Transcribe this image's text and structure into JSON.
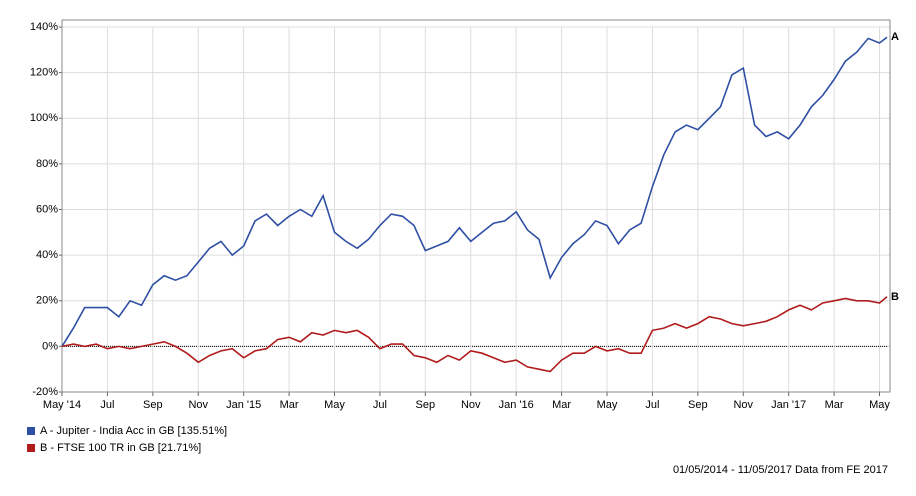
{
  "chart_data": {
    "type": "line",
    "x": [
      0,
      0.5,
      1,
      1.5,
      2,
      2.5,
      3,
      3.5,
      4,
      4.5,
      5,
      5.5,
      6,
      6.5,
      7,
      7.5,
      8,
      8.5,
      9,
      9.5,
      10,
      10.5,
      11,
      11.5,
      12,
      12.5,
      13,
      13.5,
      14,
      14.5,
      15,
      15.5,
      16,
      16.5,
      17,
      17.5,
      18,
      18.5,
      19,
      19.5,
      20,
      20.5,
      21,
      21.5,
      22,
      22.5,
      23,
      23.5,
      24,
      24.5,
      25,
      25.5,
      26,
      26.5,
      27,
      27.5,
      28,
      28.5,
      29,
      29.5,
      30,
      30.5,
      31,
      31.5,
      32,
      32.5,
      33,
      33.5,
      34,
      34.5,
      35,
      35.5,
      36,
      36.33
    ],
    "series": [
      {
        "name": "A - Jupiter - India Acc in GB [135.51%]",
        "label": "A",
        "color": "#2e4fa3",
        "values": [
          0,
          8,
          17,
          17,
          17,
          13,
          20,
          18,
          27,
          31,
          29,
          31,
          37,
          43,
          46,
          40,
          44,
          55,
          58,
          53,
          57,
          60,
          57,
          66,
          50,
          46,
          43,
          47,
          53,
          58,
          57,
          53,
          42,
          44,
          46,
          52,
          46,
          50,
          54,
          55,
          59,
          51,
          47,
          30,
          39,
          45,
          49,
          55,
          53,
          45,
          51,
          54,
          70,
          84,
          94,
          97,
          95,
          100,
          105,
          119,
          122,
          97,
          92,
          94,
          91,
          97,
          105,
          110,
          117,
          125,
          129,
          135,
          133,
          135.51
        ]
      },
      {
        "name": "B - FTSE 100 TR in GB [21.71%]",
        "label": "B",
        "color": "#b01c1c",
        "values": [
          0,
          1,
          0,
          1,
          -1,
          0,
          -1,
          0,
          1,
          2,
          0,
          -3,
          -7,
          -4,
          -2,
          -1,
          -5,
          -2,
          -1,
          3,
          4,
          2,
          6,
          5,
          7,
          6,
          7,
          4,
          -1,
          1,
          1,
          -4,
          -5,
          -7,
          -4,
          -6,
          -2,
          -3,
          -5,
          -7,
          -6,
          -9,
          -10,
          -11,
          -6,
          -3,
          -3,
          0,
          -2,
          -1,
          -3,
          -3,
          7,
          8,
          10,
          8,
          10,
          13,
          12,
          10,
          9,
          10,
          11,
          13,
          16,
          18,
          16,
          19,
          20,
          21,
          20,
          20,
          19,
          21.71
        ]
      }
    ],
    "xlim": [
      0,
      36.33
    ],
    "xticks": [
      {
        "value": 0,
        "label": "May '14"
      },
      {
        "value": 2,
        "label": "Jul"
      },
      {
        "value": 4,
        "label": "Sep"
      },
      {
        "value": 6,
        "label": "Nov"
      },
      {
        "value": 8,
        "label": "Jan '15"
      },
      {
        "value": 10,
        "label": "Mar"
      },
      {
        "value": 12,
        "label": "May"
      },
      {
        "value": 14,
        "label": "Jul"
      },
      {
        "value": 16,
        "label": "Sep"
      },
      {
        "value": 18,
        "label": "Nov"
      },
      {
        "value": 20,
        "label": "Jan '16"
      },
      {
        "value": 22,
        "label": "Mar"
      },
      {
        "value": 24,
        "label": "May"
      },
      {
        "value": 26,
        "label": "Jul"
      },
      {
        "value": 28,
        "label": "Sep"
      },
      {
        "value": 30,
        "label": "Nov"
      },
      {
        "value": 32,
        "label": "Jan '17"
      },
      {
        "value": 34,
        "label": "Mar"
      },
      {
        "value": 36,
        "label": "May"
      }
    ],
    "ylim": [
      -20,
      140
    ],
    "yticks": [
      {
        "value": -20,
        "label": "-20%"
      },
      {
        "value": 0,
        "label": "0%"
      },
      {
        "value": 20,
        "label": "20%"
      },
      {
        "value": 40,
        "label": "40%"
      },
      {
        "value": 60,
        "label": "60%"
      },
      {
        "value": 80,
        "label": "80%"
      },
      {
        "value": 100,
        "label": "100%"
      },
      {
        "value": 120,
        "label": "120%"
      },
      {
        "value": 140,
        "label": "140%"
      }
    ],
    "grid": true,
    "footer": "01/05/2014 - 11/05/2017 Data from FE 2017"
  }
}
